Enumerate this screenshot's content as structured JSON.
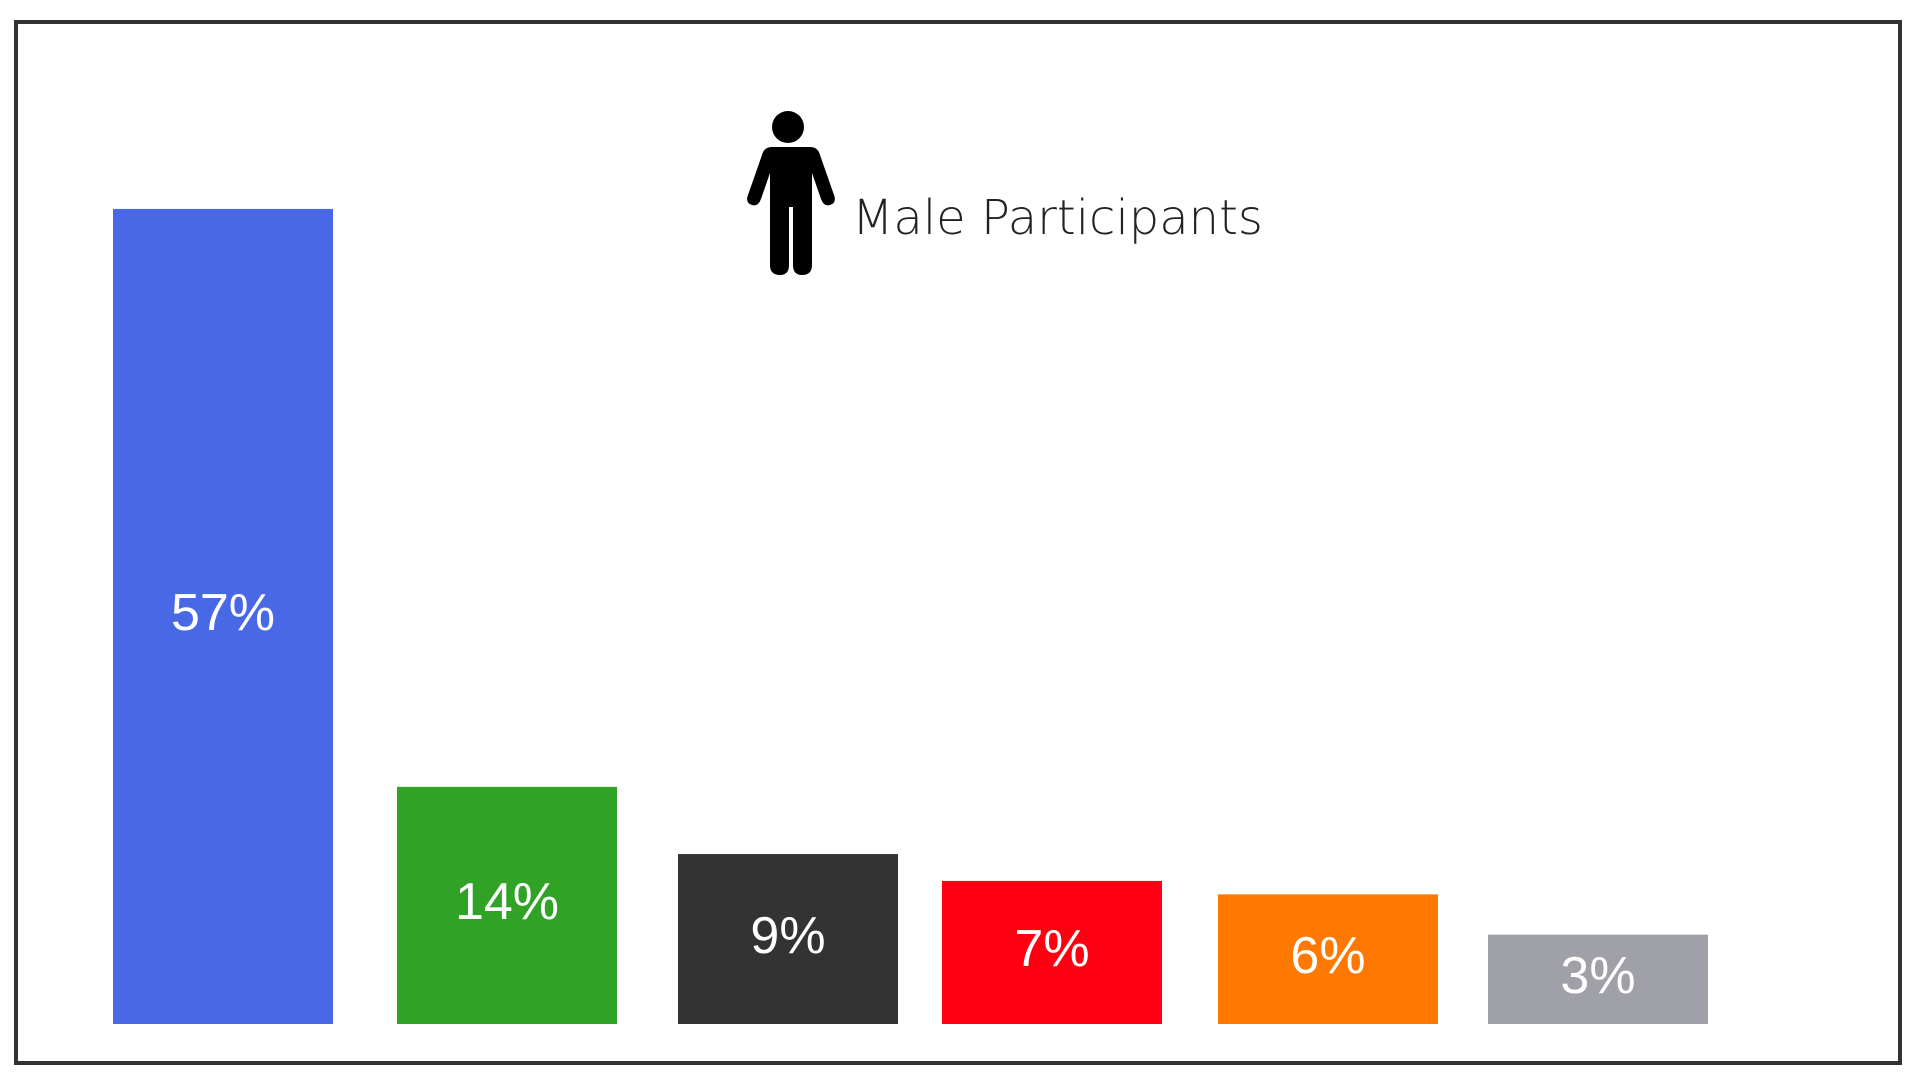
{
  "chart_data": {
    "type": "bar",
    "title": "Male Participants",
    "values": [
      57,
      14,
      9,
      7,
      6,
      3
    ],
    "value_labels": [
      "57%",
      "14%",
      "9%",
      "7%",
      "6%",
      "3%"
    ],
    "colors": [
      "#4868e6",
      "#30a326",
      "#333333",
      "#ff0012",
      "#ff7800",
      "#a0a0a8"
    ]
  }
}
